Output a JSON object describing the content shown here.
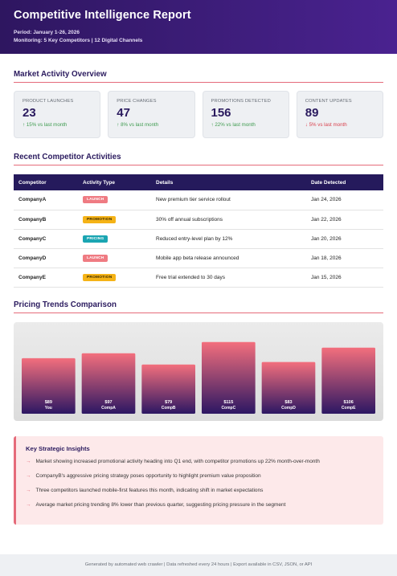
{
  "header": {
    "title": "Competitive Intelligence Report",
    "period": "Period: January 1-26, 2026",
    "monitoring": "Monitoring: 5 Key Competitors | 12 Digital Channels"
  },
  "overview": {
    "title": "Market Activity Overview",
    "kpis": [
      {
        "label": "Product Launches",
        "value": "23",
        "change": "↑ 15% vs last month",
        "trend": "up"
      },
      {
        "label": "Price Changes",
        "value": "47",
        "change": "↑ 8% vs last month",
        "trend": "up"
      },
      {
        "label": "Promotions Detected",
        "value": "156",
        "change": "↑ 22% vs last month",
        "trend": "up"
      },
      {
        "label": "Content Updates",
        "value": "89",
        "change": "↓ 5% vs last month",
        "trend": "down"
      }
    ]
  },
  "activities": {
    "title": "Recent Competitor Activities",
    "columns": [
      "Competitor",
      "Activity Type",
      "Details",
      "Date Detected"
    ],
    "rows": [
      {
        "competitor": "CompanyA",
        "type": "LAUNCH",
        "type_class": "launch",
        "details": "New premium tier service rollout",
        "date": "Jan 24, 2026"
      },
      {
        "competitor": "CompanyB",
        "type": "PROMOTION",
        "type_class": "promotion",
        "details": "30% off annual subscriptions",
        "date": "Jan 22, 2026"
      },
      {
        "competitor": "CompanyC",
        "type": "PRICING",
        "type_class": "pricing",
        "details": "Reduced entry-level plan by 12%",
        "date": "Jan 20, 2026"
      },
      {
        "competitor": "CompanyD",
        "type": "LAUNCH",
        "type_class": "launch",
        "details": "Mobile app beta release announced",
        "date": "Jan 18, 2026"
      },
      {
        "competitor": "CompanyE",
        "type": "PROMOTION",
        "type_class": "promotion",
        "details": "Free trial extended to 30 days",
        "date": "Jan 15, 2026"
      }
    ]
  },
  "pricing": {
    "title": "Pricing Trends Comparison"
  },
  "chart_data": {
    "type": "bar",
    "categories": [
      "You",
      "CompA",
      "CompB",
      "CompC",
      "CompD",
      "CompE"
    ],
    "values": [
      89,
      97,
      79,
      115,
      83,
      106
    ],
    "value_labels": [
      "$89",
      "$97",
      "$79",
      "$115",
      "$83",
      "$106"
    ],
    "title": "",
    "xlabel": "",
    "ylabel": "",
    "ylim": [
      0,
      125
    ],
    "grid": false,
    "legend": "none",
    "bar_gradient": [
      "#f36f7d",
      "#2c1763"
    ]
  },
  "insights": {
    "title": "Key Strategic Insights",
    "items": [
      "Market showing increased promotional activity heading into Q1 end, with competitor promotions up 22% month-over-month",
      "CompanyB's aggressive pricing strategy poses opportunity to highlight premium value proposition",
      "Three competitors launched mobile-first features this month, indicating shift in market expectations",
      "Average market pricing trending 8% lower than previous quarter, suggesting pricing pressure in the segment"
    ]
  },
  "footer": {
    "text": "Generated by automated web crawler | Data refreshed every 24 hours | Export available in CSV, JSON, or API"
  },
  "colors": {
    "header_bg": "#3d1d7a",
    "accent": "#e56b7a",
    "up": "#3e9b4f",
    "down": "#d9414d"
  }
}
